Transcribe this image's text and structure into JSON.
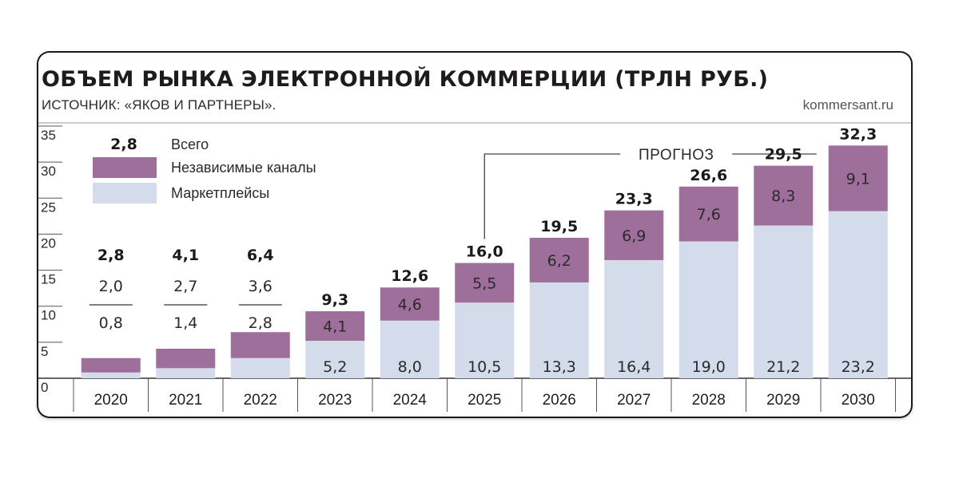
{
  "title": "ОБЪЕМ РЫНКА ЭЛЕКТРОННОЙ КОММЕРЦИИ (ТРЛН РУБ.)",
  "source": "ИСТОЧНИК: «ЯКОВ И ПАРТНЕРЫ».",
  "credit": "kommersant.ru",
  "colors": {
    "independent": "#9f6f9c",
    "marketplaces": "#d4dceb",
    "text": "#1f1a1c"
  },
  "forecast_label": "ПРОГНОЗ",
  "chart_data": {
    "type": "bar",
    "stacked": true,
    "categories": [
      "2020",
      "2021",
      "2022",
      "2023",
      "2024",
      "2025",
      "2026",
      "2027",
      "2028",
      "2029",
      "2030"
    ],
    "series": [
      {
        "name": "Маркетплейсы",
        "values": [
          0.8,
          1.4,
          2.8,
          5.2,
          8.0,
          10.5,
          13.3,
          16.4,
          19.0,
          21.2,
          23.2
        ],
        "labels": [
          "0,8",
          "1,4",
          "2,8",
          "5,2",
          "8,0",
          "10,5",
          "13,3",
          "16,4",
          "19,0",
          "21,2",
          "23,2"
        ]
      },
      {
        "name": "Независимые каналы",
        "values": [
          2.0,
          2.7,
          3.6,
          4.1,
          4.6,
          5.5,
          6.2,
          6.9,
          7.6,
          8.3,
          9.1
        ],
        "labels": [
          "2,0",
          "2,7",
          "3,6",
          "4,1",
          "4,6",
          "5,5",
          "6,2",
          "6,9",
          "7,6",
          "8,3",
          "9,1"
        ]
      }
    ],
    "totals": {
      "name": "Всего",
      "values": [
        2.8,
        4.1,
        6.4,
        9.3,
        12.6,
        16.0,
        19.5,
        23.3,
        26.6,
        29.5,
        32.3
      ],
      "labels": [
        "2,8",
        "4,1",
        "6,4",
        "9,3",
        "12,6",
        "16,0",
        "19,5",
        "23,3",
        "26,6",
        "29,5",
        "32,3"
      ]
    },
    "legend_sample_total": "2,8",
    "ylim": [
      0,
      35
    ],
    "yticks": [
      "0",
      "5",
      "10",
      "15",
      "20",
      "25",
      "30",
      "35"
    ],
    "forecast_start": "2025",
    "legend_position": "top-left"
  }
}
